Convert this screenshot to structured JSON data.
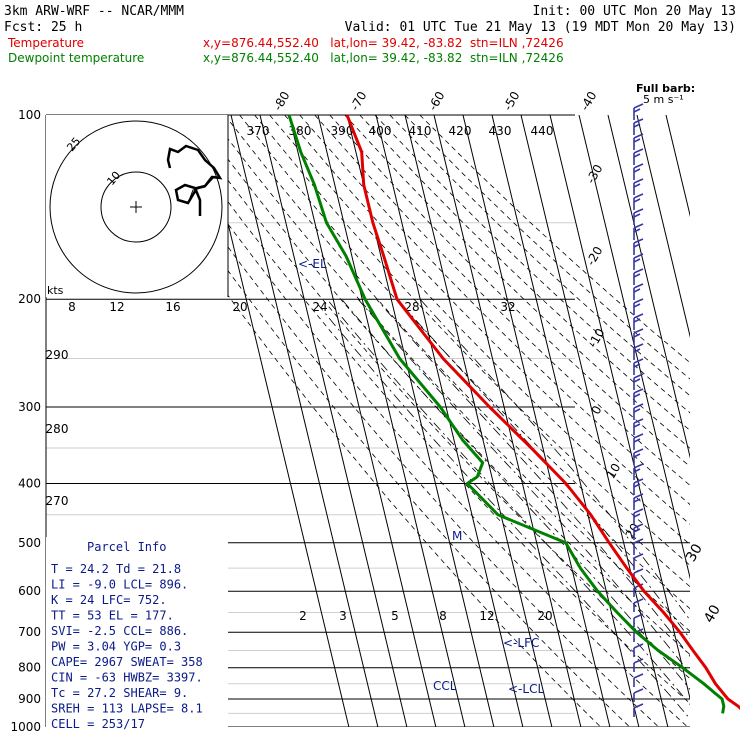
{
  "header": {
    "title": "3km ARW-WRF -- NCAR/MMM",
    "init": "Init: 00 UTC Mon 20 May 13",
    "fcst": "Fcst:   25 h",
    "valid": "Valid: 01 UTC Tue 21 May 13 (19 MDT Mon 20 May 13)",
    "legend": [
      {
        "name": "Temperature",
        "info": "x,y=876.44,552.40   lat,lon= 39.42, -83.82  stn=ILN ,72426",
        "color": "#e00000"
      },
      {
        "name": "Dewpoint temperature",
        "info": "x,y=876.44,552.40   lat,lon= 39.42, -83.82  stn=ILN ,72426",
        "color": "#008000"
      }
    ]
  },
  "wind": {
    "full_barb_label": "Full barb:",
    "full_barb_value": "5 m s⁻¹",
    "hodo_kts_label": "kts",
    "hodo_speed_labels": [
      "25",
      "10"
    ]
  },
  "chart_data": {
    "type": "line",
    "chart_kind": "Skew-T log-P diagram",
    "y_axis_pressure_hpa": [
      "100",
      "200",
      "300",
      "400",
      "500",
      "600",
      "700",
      "800",
      "900",
      "1000"
    ],
    "isotherm_labels_top": [
      "-80",
      "-70",
      "-60",
      "-50",
      "-40"
    ],
    "isotherm_labels_right": [
      "-30",
      "-20",
      "-10",
      "0",
      "10",
      "20",
      "30",
      "40"
    ],
    "theta_labels_top": [
      "370",
      "380",
      "390",
      "400",
      "410",
      "420",
      "430",
      "440"
    ],
    "theta_labels_left": [
      "290",
      "280",
      "270"
    ],
    "mixing_ratio_labels_mid": [
      "8",
      "12",
      "16",
      "20",
      "24",
      "28",
      "32"
    ],
    "mixing_ratio_labels_low": [
      "2",
      "3",
      "5",
      "8",
      "12",
      "20"
    ],
    "annotations": [
      "<-EL",
      "<-LFC",
      "<-LCL",
      "CCL",
      "M"
    ],
    "series": [
      {
        "name": "Temperature",
        "color": "#e00000",
        "points": [
          [
            100,
            -60
          ],
          [
            115,
            -58
          ],
          [
            130,
            -60
          ],
          [
            150,
            -60
          ],
          [
            170,
            -59
          ],
          [
            200,
            -58
          ],
          [
            250,
            -47
          ],
          [
            300,
            -35
          ],
          [
            350,
            -24
          ],
          [
            400,
            -15
          ],
          [
            450,
            -9
          ],
          [
            500,
            -5
          ],
          [
            550,
            -1
          ],
          [
            600,
            3
          ],
          [
            650,
            8
          ],
          [
            700,
            12
          ],
          [
            750,
            15
          ],
          [
            800,
            18
          ],
          [
            850,
            20
          ],
          [
            900,
            23
          ],
          [
            925,
            26
          ],
          [
            950,
            28
          ],
          [
            970,
            30
          ]
        ]
      },
      {
        "name": "Dewpoint temperature",
        "color": "#008000",
        "points": [
          [
            100,
            -80
          ],
          [
            115,
            -79
          ],
          [
            130,
            -77
          ],
          [
            150,
            -76
          ],
          [
            170,
            -72
          ],
          [
            200,
            -69
          ],
          [
            250,
            -62
          ],
          [
            300,
            -52
          ],
          [
            340,
            -47
          ],
          [
            370,
            -42
          ],
          [
            390,
            -45
          ],
          [
            400,
            -49
          ],
          [
            450,
            -41
          ],
          [
            500,
            -20
          ],
          [
            550,
            -17
          ],
          [
            600,
            -13
          ],
          [
            650,
            -8
          ],
          [
            700,
            -3
          ],
          [
            750,
            3
          ],
          [
            800,
            10
          ],
          [
            850,
            16
          ],
          [
            880,
            19
          ],
          [
            900,
            21
          ],
          [
            925,
            21
          ],
          [
            950,
            20
          ]
        ]
      }
    ]
  },
  "parcel_info": {
    "title": "Parcel Info",
    "rows": [
      "T  =   24.2 Td =  21.8",
      "LI =   -9.0 LCL=  896.",
      "K  =     24 LFC=  752.",
      "TT =     53 EL =  177.",
      "SVI=   -2.5 CCL=  886.",
      "PW =   3.04 YGP=   0.3",
      "CAPE=  2967 SWEAT=  358",
      "CIN =   -63 HWBZ= 3397.",
      "Tc =   27.2 SHEAR=   9.",
      "SREH =  113 LAPSE=  8.1",
      "CELL = 253/17"
    ]
  }
}
